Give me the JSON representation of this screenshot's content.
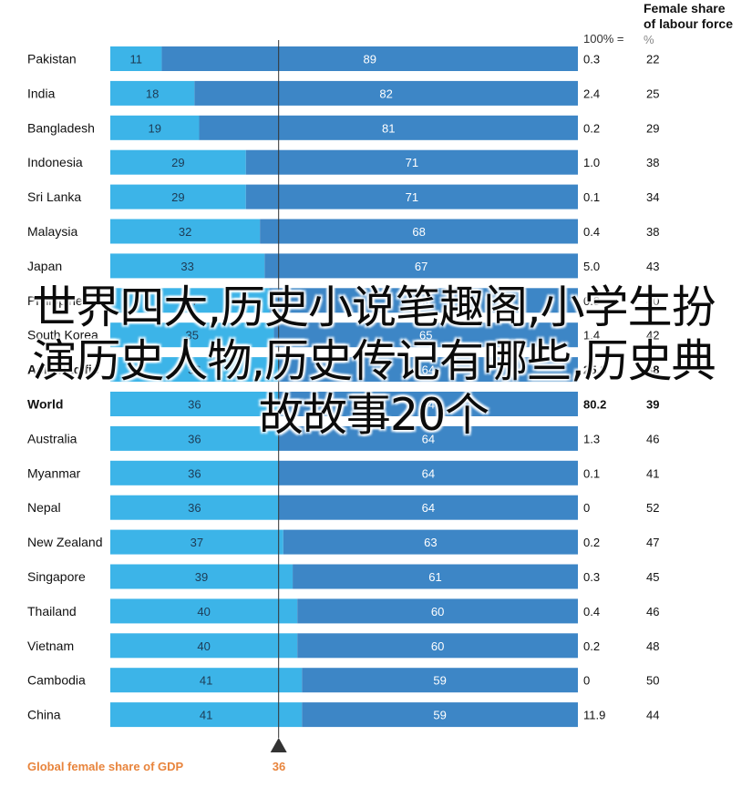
{
  "header": {
    "title_line1": "Female share",
    "title_line2": "of labour force",
    "ref_label": "100% =",
    "pct_label": "%"
  },
  "footer": {
    "label": "Global female share of GDP",
    "value": "36"
  },
  "overlay_text": "世界四大,历史小说笔趣阁,小学生扮演历史人物,历史传记有哪些,历史典故故事20个",
  "colors": {
    "female_bar": "#3cb4e8",
    "male_bar": "#3d86c6",
    "highlight": "#e8843c",
    "marker": "#333333"
  },
  "chart_data": {
    "type": "bar",
    "orientation": "horizontal-stacked",
    "categories": [
      "Pakistan",
      "India",
      "Bangladesh",
      "Indonesia",
      "Sri Lanka",
      "Malaysia",
      "Japan",
      "Philippines",
      "South Korea",
      "Asia Pacific",
      "World",
      "Australia",
      "Myanmar",
      "Nepal",
      "New Zealand",
      "Singapore",
      "Thailand",
      "Vietnam",
      "Cambodia",
      "China"
    ],
    "category_labels": [
      "Pakistan",
      "India",
      "Bangladesh",
      "Indonesia",
      "Sri Lanka",
      "Malaysia",
      "Japan",
      "Philippines",
      "South Korea",
      "Asia Pacific",
      "World",
      "Australia",
      "Myanmar",
      "Nepal",
      "New Zealand",
      "Singapore",
      "Thailand",
      "Vietnam",
      "Cambodia",
      "China"
    ],
    "highlighted": [
      "Asia Pacific",
      "World"
    ],
    "series": [
      {
        "values": [
          11,
          18,
          19,
          29,
          29,
          32,
          33,
          34,
          35,
          36,
          36,
          36,
          36,
          36,
          37,
          39,
          40,
          40,
          41,
          41
        ]
      },
      {
        "values": [
          89,
          82,
          81,
          71,
          71,
          68,
          67,
          66,
          65,
          64,
          64,
          64,
          64,
          64,
          63,
          61,
          60,
          60,
          59,
          59
        ]
      }
    ],
    "column_100pct": [
      "0.3",
      "2.4",
      "0.2",
      "1.0",
      "0.1",
      "0.4",
      "5.0",
      "0.3",
      "1.4",
      "25.8",
      "80.2",
      "1.3",
      "0.1",
      "0",
      "0.2",
      "0.3",
      "0.4",
      "0.2",
      "0",
      "11.9"
    ],
    "column_female_labour": [
      "22",
      "25",
      "29",
      "38",
      "34",
      "38",
      "43",
      "40",
      "42",
      "38",
      "39",
      "46",
      "41",
      "52",
      "47",
      "45",
      "46",
      "48",
      "50",
      "44"
    ],
    "reference_value": 36,
    "xlim": [
      0,
      100
    ]
  }
}
